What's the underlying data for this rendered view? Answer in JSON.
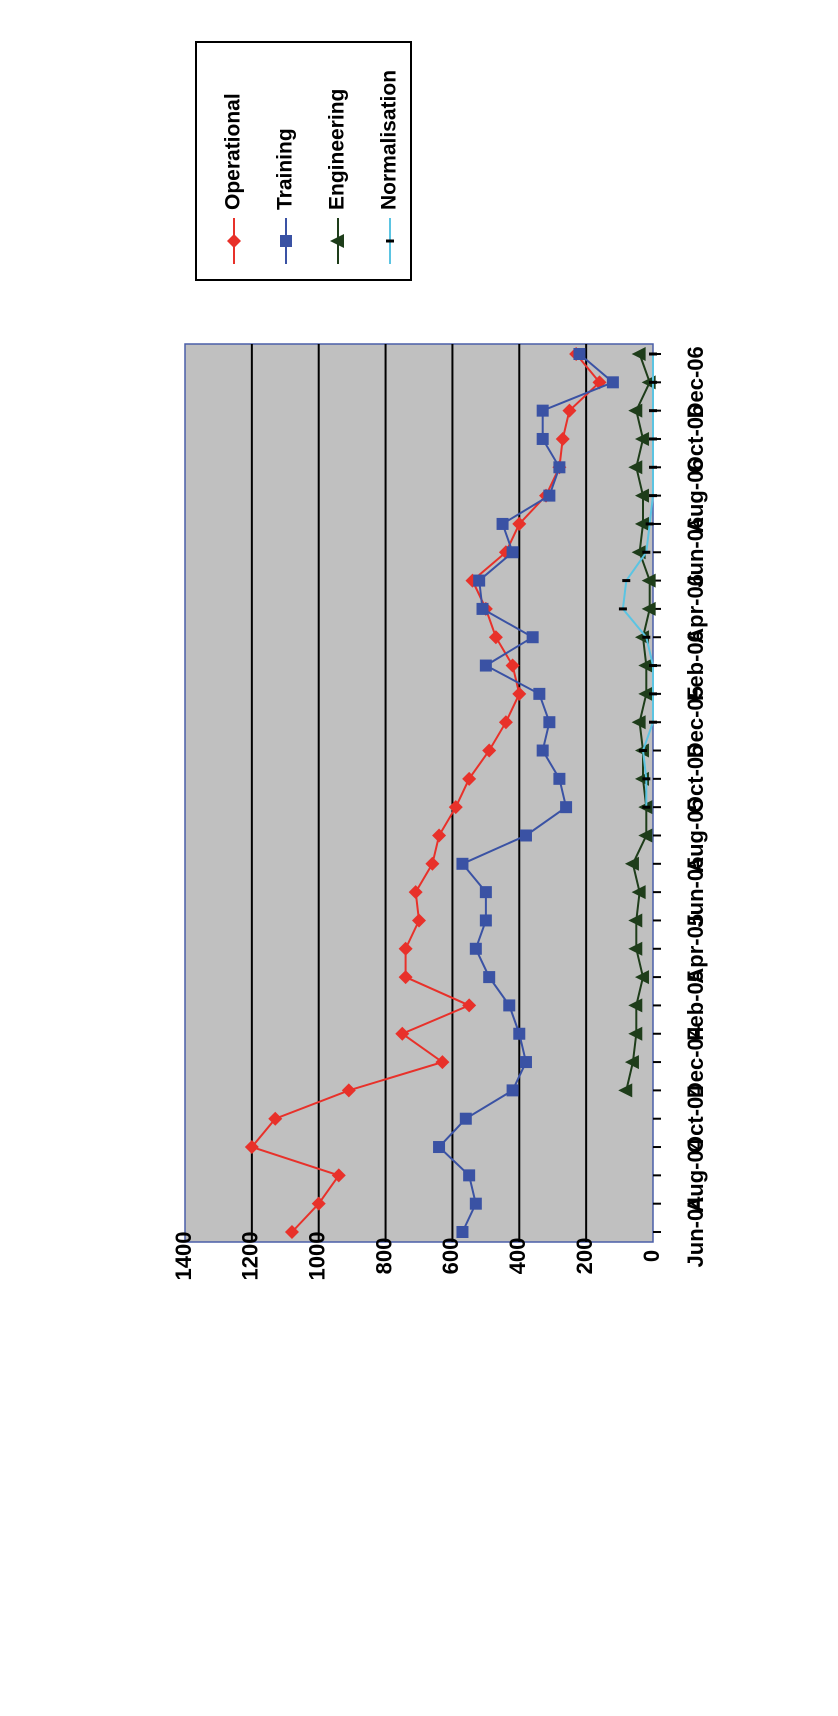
{
  "chart_data": {
    "type": "line",
    "title": "",
    "xlabel": "",
    "ylabel": "",
    "ylim": [
      0,
      1400
    ],
    "yticks": [
      0,
      200,
      400,
      600,
      800,
      1000,
      1200,
      1400
    ],
    "grid": true,
    "legend_position": "top-right",
    "plot_background": "#C0C0C0",
    "orientation": "rotated-180",
    "x_tick_labels": [
      "Jun-04",
      "Aug-04",
      "Oct-04",
      "Dec-04",
      "Feb-05",
      "Apr-05",
      "Jun-05",
      "Aug-05",
      "Oct-05",
      "Dec-05",
      "Feb-06",
      "Apr-06",
      "Jun-06",
      "Aug-06",
      "Oct-06",
      "Dec-06"
    ],
    "x": [
      "Jun-04",
      "Jul-04",
      "Aug-04",
      "Sep-04",
      "Oct-04",
      "Nov-04",
      "Dec-04",
      "Jan-05",
      "Feb-05",
      "Mar-05",
      "Apr-05",
      "May-05",
      "Jun-05",
      "Jul-05",
      "Aug-05",
      "Sep-05",
      "Oct-05",
      "Nov-05",
      "Dec-05",
      "Jan-06",
      "Feb-06",
      "Mar-06",
      "Apr-06",
      "May-06",
      "Jun-06",
      "Jul-06",
      "Aug-06",
      "Sep-06",
      "Oct-06",
      "Nov-06",
      "Dec-06",
      "Jan-07"
    ],
    "series": [
      {
        "name": "Operational",
        "color": "#E8312A",
        "marker": "diamond",
        "values": [
          1080,
          1000,
          940,
          1200,
          1130,
          910,
          630,
          750,
          550,
          740,
          740,
          700,
          710,
          660,
          640,
          590,
          550,
          490,
          440,
          400,
          420,
          470,
          500,
          540,
          440,
          400,
          320,
          280,
          270,
          250,
          160,
          230
        ]
      },
      {
        "name": "Training",
        "color": "#3A52A4",
        "marker": "square",
        "values": [
          570,
          530,
          550,
          640,
          560,
          420,
          380,
          400,
          430,
          490,
          530,
          500,
          500,
          570,
          380,
          260,
          280,
          330,
          310,
          340,
          500,
          360,
          510,
          520,
          420,
          450,
          310,
          280,
          330,
          330,
          120,
          220
        ]
      },
      {
        "name": "Engineering",
        "color": "#1E3D1A",
        "marker": "triangle",
        "values": [
          null,
          null,
          null,
          null,
          null,
          80,
          60,
          50,
          50,
          30,
          50,
          50,
          40,
          60,
          20,
          20,
          30,
          30,
          40,
          20,
          20,
          30,
          10,
          10,
          40,
          30,
          30,
          50,
          30,
          50,
          10,
          40
        ]
      },
      {
        "name": "Normalisation",
        "color": "#5BC4E2",
        "marker": "dash",
        "values": [
          null,
          null,
          null,
          null,
          null,
          null,
          null,
          null,
          null,
          null,
          null,
          null,
          null,
          null,
          null,
          20,
          20,
          30,
          0,
          0,
          0,
          20,
          90,
          80,
          20,
          10,
          0,
          0,
          0,
          0,
          0,
          0
        ]
      }
    ]
  }
}
